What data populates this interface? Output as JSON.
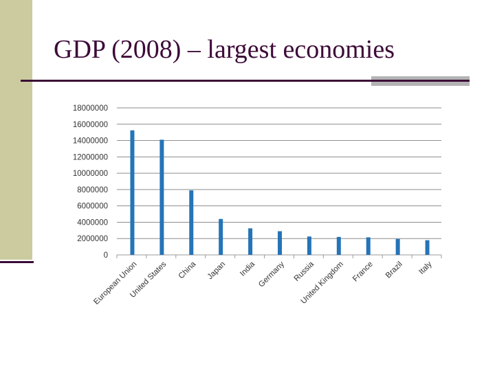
{
  "slide": {
    "title": "GDP (2008) – largest economies"
  },
  "colors": {
    "accent_bar": "#cbcb9f",
    "title_text": "#3d0a38",
    "rule": "#3b0b35",
    "rule_accent": "#b3b3b3",
    "bar": "#2574b8",
    "grid": "#8c8c8c"
  },
  "chart_data": {
    "type": "bar",
    "title": "",
    "xlabel": "",
    "ylabel": "",
    "categories": [
      "European Union",
      "United States",
      "China",
      "Japan",
      "India",
      "Germany",
      "Russia",
      "United Kingdom",
      "France",
      "Brazil",
      "Italy"
    ],
    "values": [
      15250000,
      14100000,
      7900000,
      4400000,
      3250000,
      2900000,
      2250000,
      2200000,
      2150000,
      1950000,
      1800000
    ],
    "ylim": [
      0,
      18000000
    ],
    "yticks": [
      "0",
      "2000000",
      "4000000",
      "6000000",
      "8000000",
      "10000000",
      "12000000",
      "14000000",
      "16000000",
      "18000000"
    ],
    "grid": true,
    "legend": "none"
  }
}
